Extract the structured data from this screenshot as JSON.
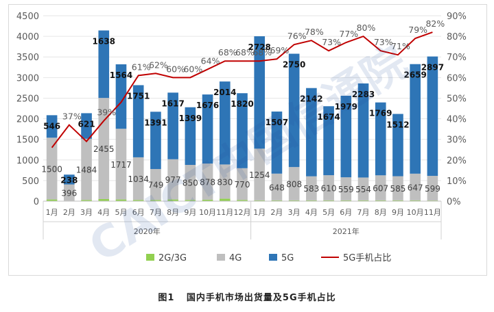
{
  "chart_data": {
    "type": "bar",
    "stacked": true,
    "categories": [
      "1月",
      "2月",
      "3月",
      "4月",
      "5月",
      "6月",
      "7月",
      "8月",
      "9月",
      "10月",
      "11月",
      "12月",
      "1月",
      "2月",
      "3月",
      "4月",
      "5月",
      "6月",
      "7月",
      "8月",
      "9月",
      "10月",
      "11月"
    ],
    "year_groups": [
      {
        "label": "2020年",
        "start": 0,
        "end": 11
      },
      {
        "label": "2021年",
        "start": 12,
        "end": 22
      }
    ],
    "series": [
      {
        "name": "2G/3G",
        "color": "#92d050",
        "values": [
          40,
          10,
          30,
          50,
          40,
          30,
          30,
          40,
          30,
          35,
          60,
          30,
          20,
          20,
          20,
          20,
          20,
          20,
          20,
          20,
          20,
          20,
          15
        ]
      },
      {
        "name": "4G",
        "color": "#bfbfbf",
        "values": [
          1500,
          396,
          1484,
          2455,
          1717,
          1034,
          749,
          977,
          850,
          878,
          830,
          770,
          1254,
          648,
          808,
          583,
          610,
          559,
          554,
          607,
          585,
          647,
          599
        ],
        "labels": [
          "1500",
          "396",
          "1484",
          "2455",
          "1717",
          "1034",
          "749",
          "977",
          "850",
          "878",
          "830",
          "770",
          "1254",
          "648",
          "808",
          "583",
          "610",
          "559",
          "554",
          "607",
          "585",
          "647",
          "599"
        ]
      },
      {
        "name": "5G",
        "color": "#2e75b6",
        "values": [
          546,
          238,
          621,
          1638,
          1564,
          1751,
          1391,
          1617,
          1399,
          1676,
          2014,
          1820,
          2728,
          1507,
          2750,
          2142,
          1674,
          1979,
          2283,
          1769,
          1512,
          2659,
          2897
        ],
        "labels": [
          "546",
          "238",
          "621",
          "1638",
          "1564",
          "1751",
          "1391",
          "1617",
          "1399",
          "1676",
          "2014",
          "1820",
          "2728",
          "1507",
          "2750",
          "2142",
          "1674",
          "1979",
          "2283",
          "1769",
          "1512",
          "2659",
          "2897"
        ]
      },
      {
        "name": "5G手机占比",
        "color": "#c00000",
        "axis": "right",
        "values": [
          26,
          37,
          29,
          39,
          48,
          61,
          62,
          60,
          60,
          64,
          68,
          68,
          68,
          69,
          76,
          78,
          73,
          77,
          80,
          73,
          71,
          79,
          82
        ],
        "labels": [
          "",
          "37%",
          "",
          "39%",
          "",
          "61%",
          "62%",
          "60%",
          "60%",
          "64%",
          "68%",
          "68%",
          "68%",
          "69%",
          "76%",
          "78%",
          "73%",
          "77%",
          "80%",
          "73%",
          "71%",
          "79%",
          "82%"
        ]
      }
    ],
    "y_left": {
      "min": 0,
      "max": 4500,
      "ticks": [
        "0",
        "500",
        "1000",
        "1500",
        "2000",
        "2500",
        "3000",
        "3500",
        "4000",
        "4500"
      ]
    },
    "y_right": {
      "min": 0,
      "max": 90,
      "ticks": [
        "0%",
        "10%",
        "20%",
        "30%",
        "40%",
        "50%",
        "60%",
        "70%",
        "80%",
        "90%"
      ]
    },
    "grid": true,
    "legend_position": "bottom",
    "legend": [
      "2G/3G",
      "4G",
      "5G",
      "5G手机占比"
    ]
  },
  "caption": {
    "figure": "图1",
    "text": "国内手机市场出货量及5G手机占比"
  },
  "watermark": {
    "text": "CAICT中国信通院"
  }
}
